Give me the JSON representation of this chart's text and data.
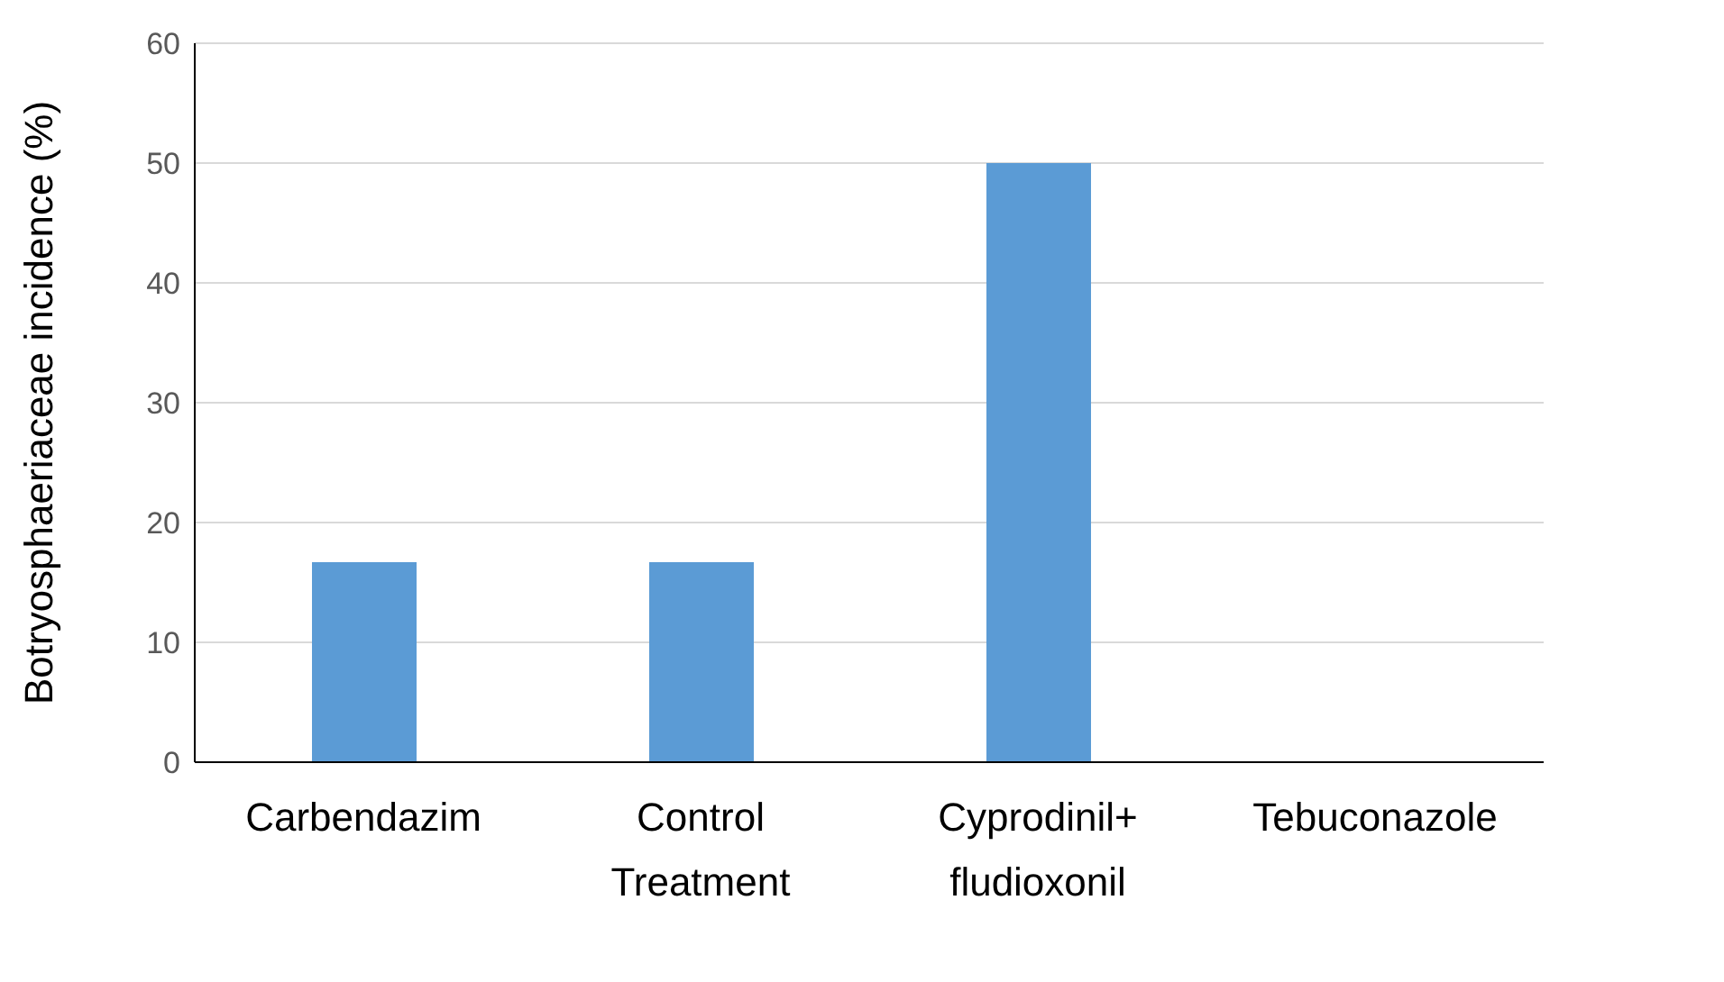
{
  "chart_data": {
    "type": "bar",
    "ylabel": "Botryosphaeriaceae incidence (%)",
    "categories": [
      "Carbendazim",
      "Control Treatment",
      "Cyprodinil+ fludioxonil",
      "Tebuconazole"
    ],
    "values": [
      16.7,
      16.7,
      50,
      0
    ],
    "color": "#5b9bd5",
    "ylim": [
      0,
      60
    ],
    "yticks": [
      0,
      10,
      20,
      30,
      40,
      50,
      60
    ],
    "grid": "y"
  }
}
